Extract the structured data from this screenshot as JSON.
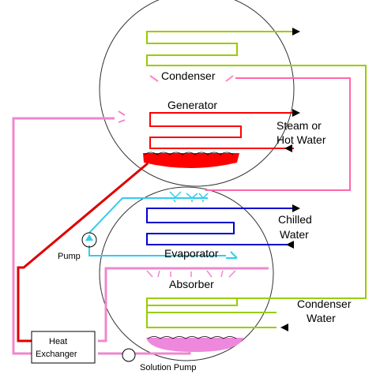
{
  "labels": {
    "condenser": "Condenser",
    "generator": "Generator",
    "steam": "Steam or",
    "hot_water": "Hot Water",
    "chilled": "Chilled",
    "water": "Water",
    "evaporator": "Evaporator",
    "absorber": "Absorber",
    "pump": "Pump",
    "condenser_water_1": "Condenser",
    "condenser_water_2": "Water",
    "heat": "Heat",
    "exchanger": "Exchanger",
    "solution_pump": "Solution Pump"
  },
  "colors": {
    "condenser_water": "#99cc00",
    "steam": "#ff0000",
    "refrigerant_vapor": "#ff66aa",
    "refrigerant_liquid": "#33ccee",
    "chilled_water": "#0000cc",
    "strong_solution": "#dd0000",
    "weak_solution": "#ee88cc"
  }
}
